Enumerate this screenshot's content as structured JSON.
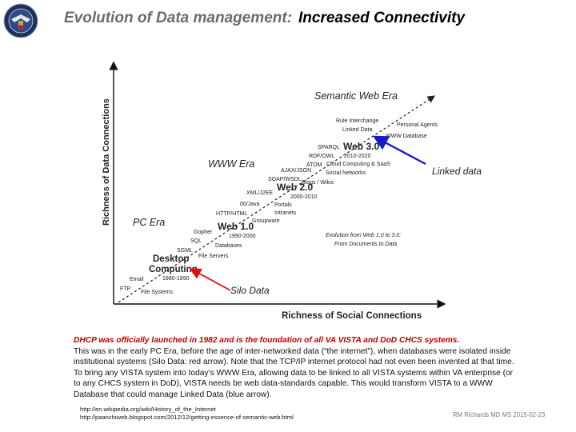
{
  "title": {
    "part1": "Evolution of Data management:",
    "part2": "Increased Connectivity"
  },
  "logo": {
    "icon": "va-seal-icon"
  },
  "diagram": {
    "y_axis_label": "Richness of Data Connections",
    "x_axis_label": "Richness of Social Connections",
    "eras": {
      "semantic_web": "Semantic Web Era",
      "www": "WWW Era",
      "pc": "PC Era"
    },
    "web30": {
      "label": "Web 3.0",
      "years": "2010-2020",
      "left": [
        "Rule Interchange",
        "Linked Data",
        "SPARQL",
        "RDF/OWL",
        "ATOM"
      ],
      "right": [
        "Personal Agents",
        "WWW Database",
        "Cloud Computing & SaaS",
        "Social Networks",
        "Blogs / Wikis"
      ]
    },
    "web20": {
      "label": "Web 2.0",
      "years": "2000-2010",
      "left": [
        "AJAX/JSON",
        "SOAP/WSDL",
        "XML/J2EE",
        "00/Java"
      ],
      "right": [
        "Portals",
        "Intranets",
        "Groupware"
      ]
    },
    "web10": {
      "label": "Web 1.0",
      "years": "1990-2000",
      "left": [
        "HTTP/HTML",
        "Gopher",
        "SQL",
        "SGML"
      ],
      "right": [
        "Databases",
        "File Servers"
      ]
    },
    "desktop": {
      "label1": "Desktop",
      "label2": "Computing",
      "years": "1980-1990",
      "left": [
        "Email",
        "FTP"
      ],
      "right": [
        "File Systems"
      ]
    },
    "caption": {
      "line1": "Evolution from Web 1.0 to 3.0:",
      "line2": "From Documents to Data"
    },
    "annotations": {
      "linked_data": "Linked data",
      "silo_data": "Silo Data"
    },
    "colors": {
      "linked_arrow": "#1a1acc",
      "silo_arrow": "#dd1111",
      "annotation_text_blue": "#1a1acc",
      "annotation_text_red": "#cc0000"
    }
  },
  "body": {
    "highlight": "DHCP was officially launched in 1982 and is the foundation of all VA VISTA and DoD CHCS systems.",
    "paragraph": "This was in the early PC Era, before the age of  inter-networked data (“the internet”),  when databases were isolated inside institutional systems (Silo Data: red arrow).  Note that the TCP/IP internet protocol had not even been invented at that time. To bring any VISTA system into today’s  WWW Era,  allowing data to be linked to all  VISTA systems within VA enterprise (or to any CHCS system in DoD), VISTA needs be web data-standards capable. This would transform VISTA to a  WWW Database that could manage Linked Data (blue arrow)."
  },
  "references": [
    "http://en.wikipedia.org/wiki/History_of_the_Internet",
    "http://paanchiweb.blogspot.com/2012/12/getting-essence-of-semantic-web.html"
  ],
  "credit": "RM Richards MD MS  2015-02-23"
}
